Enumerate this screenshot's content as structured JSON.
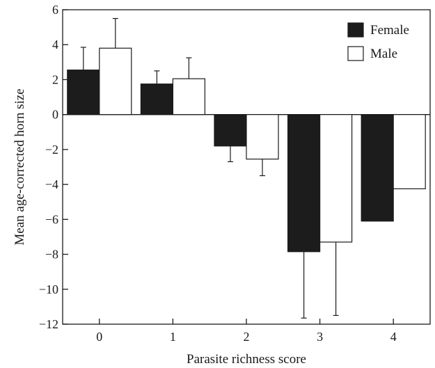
{
  "chart_data": {
    "type": "bar",
    "title": "",
    "xlabel": "Parasite richness score",
    "ylabel": "Mean age-corrected horn size",
    "categories": [
      "0",
      "1",
      "2",
      "3",
      "4"
    ],
    "ylim": [
      -12,
      6
    ],
    "yticks": [
      6,
      4,
      2,
      0,
      -2,
      -4,
      -6,
      -8,
      -10,
      -12
    ],
    "ytick_labels": [
      "6",
      "4",
      "2",
      "0",
      "−2",
      "−4",
      "−6",
      "−8",
      "−10",
      "−12"
    ],
    "grid": false,
    "legend_position": "top-right",
    "series": [
      {
        "name": "Female",
        "color": "#1c1c1c",
        "values": [
          2.55,
          1.75,
          -1.8,
          -7.85,
          -6.1
        ],
        "errors": [
          1.3,
          0.75,
          0.9,
          3.8,
          null
        ]
      },
      {
        "name": "Male",
        "color": "#ffffff",
        "values": [
          3.8,
          2.05,
          -2.55,
          -7.3,
          -4.25
        ],
        "errors": [
          1.7,
          1.2,
          0.95,
          4.2,
          null
        ]
      }
    ]
  }
}
